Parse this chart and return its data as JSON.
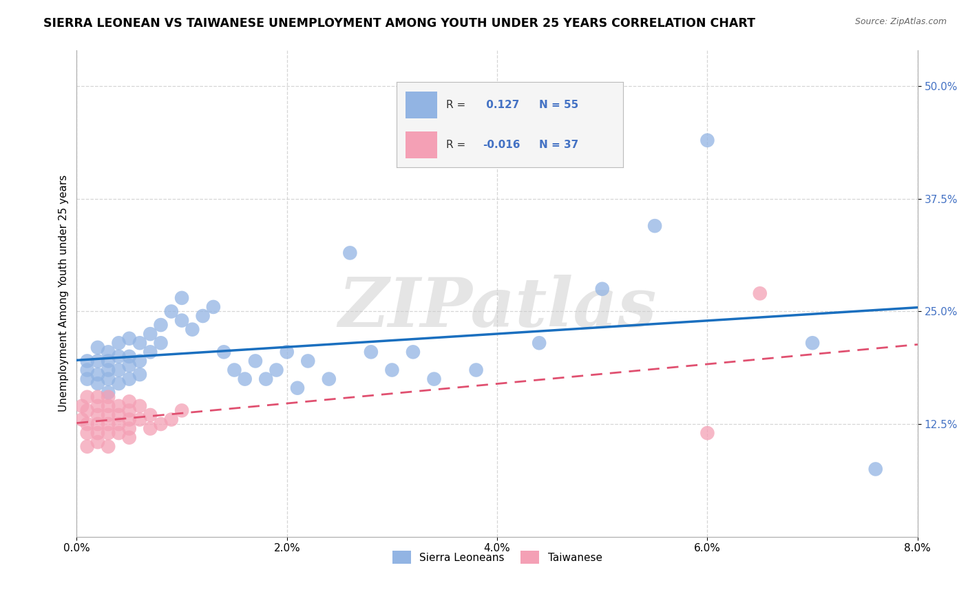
{
  "title": "SIERRA LEONEAN VS TAIWANESE UNEMPLOYMENT AMONG YOUTH UNDER 25 YEARS CORRELATION CHART",
  "source": "Source: ZipAtlas.com",
  "ylabel": "Unemployment Among Youth under 25 years",
  "xlim": [
    0.0,
    0.08
  ],
  "ylim": [
    0.0,
    0.54
  ],
  "xtick_positions": [
    0.0,
    0.02,
    0.04,
    0.06,
    0.08
  ],
  "xtick_labels": [
    "0.0%",
    "2.0%",
    "4.0%",
    "6.0%",
    "8.0%"
  ],
  "ytick_positions": [
    0.125,
    0.25,
    0.375,
    0.5
  ],
  "ytick_labels": [
    "12.5%",
    "25.0%",
    "37.5%",
    "50.0%"
  ],
  "watermark": "ZIPatlas",
  "sierra_x": [
    0.001,
    0.001,
    0.001,
    0.002,
    0.002,
    0.002,
    0.002,
    0.003,
    0.003,
    0.003,
    0.003,
    0.003,
    0.004,
    0.004,
    0.004,
    0.004,
    0.005,
    0.005,
    0.005,
    0.005,
    0.006,
    0.006,
    0.006,
    0.007,
    0.007,
    0.008,
    0.008,
    0.009,
    0.01,
    0.01,
    0.011,
    0.012,
    0.013,
    0.014,
    0.015,
    0.016,
    0.017,
    0.018,
    0.019,
    0.02,
    0.021,
    0.022,
    0.024,
    0.026,
    0.028,
    0.03,
    0.032,
    0.034,
    0.038,
    0.044,
    0.05,
    0.055,
    0.06,
    0.07,
    0.076
  ],
  "sierra_y": [
    0.185,
    0.195,
    0.175,
    0.195,
    0.21,
    0.18,
    0.17,
    0.195,
    0.185,
    0.205,
    0.175,
    0.16,
    0.2,
    0.215,
    0.185,
    0.17,
    0.2,
    0.19,
    0.175,
    0.22,
    0.215,
    0.195,
    0.18,
    0.225,
    0.205,
    0.235,
    0.215,
    0.25,
    0.24,
    0.265,
    0.23,
    0.245,
    0.255,
    0.205,
    0.185,
    0.175,
    0.195,
    0.175,
    0.185,
    0.205,
    0.165,
    0.195,
    0.175,
    0.315,
    0.205,
    0.185,
    0.205,
    0.175,
    0.185,
    0.215,
    0.275,
    0.345,
    0.44,
    0.215,
    0.075
  ],
  "taiwanese_x": [
    0.0005,
    0.0005,
    0.001,
    0.001,
    0.001,
    0.001,
    0.001,
    0.002,
    0.002,
    0.002,
    0.002,
    0.002,
    0.002,
    0.003,
    0.003,
    0.003,
    0.003,
    0.003,
    0.003,
    0.004,
    0.004,
    0.004,
    0.004,
    0.005,
    0.005,
    0.005,
    0.005,
    0.005,
    0.006,
    0.006,
    0.007,
    0.007,
    0.008,
    0.009,
    0.01,
    0.06,
    0.065
  ],
  "taiwanese_y": [
    0.145,
    0.13,
    0.155,
    0.14,
    0.125,
    0.115,
    0.1,
    0.155,
    0.145,
    0.135,
    0.125,
    0.115,
    0.105,
    0.155,
    0.145,
    0.135,
    0.125,
    0.115,
    0.1,
    0.145,
    0.135,
    0.125,
    0.115,
    0.15,
    0.14,
    0.13,
    0.12,
    0.11,
    0.145,
    0.13,
    0.135,
    0.12,
    0.125,
    0.13,
    0.14,
    0.115,
    0.27
  ],
  "sierra_color": "#92B4E3",
  "taiwanese_color": "#F4A0B5",
  "trend_blue": "#1A6FBF",
  "trend_pink": "#E05070",
  "legend_R_color": "#4472C4",
  "legend_N_color": "#4472C4",
  "grid_color": "#CCCCCC",
  "sierra_R": 0.127,
  "sierra_N": 55,
  "taiwanese_R": -0.016,
  "taiwanese_N": 37,
  "sierra_name": "Sierra Leoneans",
  "taiwanese_name": "Taiwanese",
  "title_fontsize": 12.5,
  "tick_fontsize": 11,
  "label_fontsize": 11
}
